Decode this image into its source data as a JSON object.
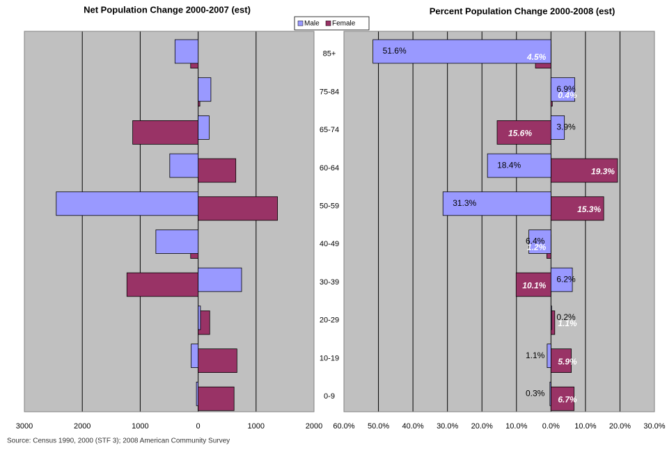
{
  "chart_data": [
    {
      "type": "bar",
      "title": "Net Population Change 2000-2007 (est)",
      "categories": [
        "85+",
        "75-84",
        "65-74",
        "60-64",
        "50-59",
        "40-49",
        "30-39",
        "20-29",
        "10-19",
        "0-9"
      ],
      "series": [
        {
          "name": "Male",
          "color": "#9999ff",
          "values": [
            -400,
            220,
            190,
            -490,
            -2450,
            -730,
            750,
            40,
            -120,
            -30
          ]
        },
        {
          "name": "Female",
          "color": "#993366",
          "values": [
            -130,
            30,
            -1130,
            650,
            1370,
            -130,
            -1230,
            200,
            670,
            620
          ]
        }
      ],
      "xlim": [
        -3000,
        2000
      ],
      "xticks": [
        {
          "value": -3000,
          "label": "3000"
        },
        {
          "value": -2000,
          "label": "2000"
        },
        {
          "value": -1000,
          "label": "1000"
        },
        0,
        1000,
        2000
      ],
      "grid": true,
      "background": "#c0c0c0"
    },
    {
      "type": "bar",
      "title": "Percent Population Change 2000-2008 (est)",
      "series": [
        {
          "color": "#9999ff",
          "values": [
            -51.6,
            6.9,
            3.9,
            -18.4,
            -31.3,
            -6.4,
            6.2,
            0.2,
            -1.1,
            -0.3
          ],
          "value_labels": [
            "51.6%",
            "6.9%",
            "3.9%",
            "18.4%",
            "31.3%",
            "6.4%",
            "6.2%",
            "0.2%",
            "1.1%",
            "0.3%"
          ]
        },
        {
          "color": "#993366",
          "values": [
            -4.5,
            0.4,
            -15.6,
            19.3,
            15.3,
            -1.2,
            -10.1,
            1.1,
            5.9,
            6.7
          ],
          "value_labels": [
            "4.5%",
            "0.4%",
            "15.6%",
            "19.3%",
            "15.3%",
            "1.2%",
            "10.1%",
            "1.1%",
            "5.9%",
            "6.7%"
          ]
        }
      ],
      "xlim": [
        -60,
        30
      ],
      "xticks": [
        {
          "value": -60,
          "label": "60.0%"
        },
        {
          "value": -50,
          "label": "50.0%"
        },
        {
          "value": -40,
          "label": "40.0%"
        },
        {
          "value": -30,
          "label": "30.0%"
        },
        {
          "value": -20,
          "label": "20.0%"
        },
        {
          "value": -10,
          "label": "10.0%"
        },
        {
          "value": 0,
          "label": "0.0%"
        },
        {
          "value": 10,
          "label": "10.0%"
        },
        {
          "value": 20,
          "label": "20.0%"
        },
        {
          "value": 30,
          "label": "30.0%"
        }
      ],
      "grid": true,
      "background": "#c0c0c0"
    }
  ],
  "source": "Source: Census 1990, 2000 (STF 3); 2008 American Community Survey"
}
